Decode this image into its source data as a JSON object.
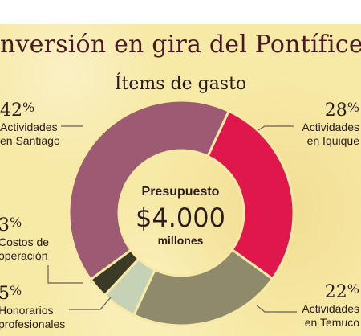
{
  "title": "nversión en gira del Pontífice",
  "chart_data": {
    "type": "pie",
    "title": "Ítems de gasto",
    "center": {
      "heading": "Presupuesto",
      "value": "$4.000",
      "unit": "millones"
    },
    "slices": [
      {
        "label_line1": "Actividades",
        "label_line2": "en Iquique",
        "value": 28,
        "pct_label": "28",
        "color": "#e0174d"
      },
      {
        "label_line1": "Actividades",
        "label_line2": "en Temuco",
        "value": 22,
        "pct_label": "22",
        "color": "#8f8a6c"
      },
      {
        "label_line1": "Honorarios",
        "label_line2": "profesionales",
        "value": 5,
        "pct_label": "5",
        "color": "#c5d2b6"
      },
      {
        "label_line1": "Costos de",
        "label_line2": "operación",
        "value": 3,
        "pct_label": "3",
        "color": "#3b3a27"
      },
      {
        "label_line1": "Actividades",
        "label_line2": "en Santiago",
        "value": 42,
        "pct_label": "42",
        "color": "#9c5a73"
      }
    ],
    "percent_sign": "%",
    "ring_gap_color": "#f7e9a6",
    "line_color": "#6b5b5b"
  }
}
